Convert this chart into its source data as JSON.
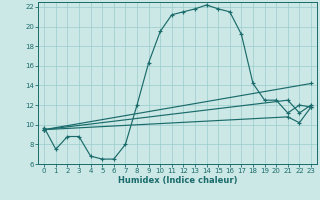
{
  "xlabel": "Humidex (Indice chaleur)",
  "background_color": "#cce8e6",
  "grid_color": "#99cccc",
  "line_color": "#1a6b6b",
  "xlim": [
    -0.5,
    23.5
  ],
  "ylim": [
    6,
    22.5
  ],
  "xticks": [
    0,
    1,
    2,
    3,
    4,
    5,
    6,
    7,
    8,
    9,
    10,
    11,
    12,
    13,
    14,
    15,
    16,
    17,
    18,
    19,
    20,
    21,
    22,
    23
  ],
  "yticks": [
    6,
    8,
    10,
    12,
    14,
    16,
    18,
    20,
    22
  ],
  "line1_x": [
    0,
    1,
    2,
    3,
    4,
    5,
    6,
    7,
    8,
    9,
    10,
    11,
    12,
    13,
    14,
    15,
    16,
    17,
    18,
    19,
    20,
    21,
    22,
    23
  ],
  "line1_y": [
    9.7,
    7.5,
    8.8,
    8.8,
    6.8,
    6.5,
    6.5,
    8.0,
    12.0,
    16.3,
    19.5,
    21.2,
    21.5,
    21.8,
    22.2,
    21.8,
    21.5,
    19.2,
    14.2,
    12.5,
    12.5,
    11.2,
    12.0,
    11.8
  ],
  "line2_x": [
    0,
    23
  ],
  "line2_y": [
    9.5,
    14.2
  ],
  "line3_x": [
    0,
    21,
    22,
    23
  ],
  "line3_y": [
    9.5,
    12.5,
    11.2,
    12.0
  ],
  "line4_x": [
    0,
    21,
    22,
    23
  ],
  "line4_y": [
    9.5,
    10.8,
    10.2,
    11.8
  ]
}
